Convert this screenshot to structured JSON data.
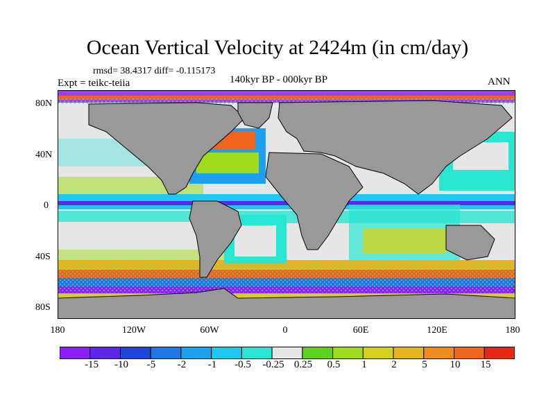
{
  "title": "Ocean Vertical Velocity at 2424m (in cm/day)",
  "stats": "rmsd= 38.4317 diff= -0.115173",
  "period": "140kyr BP - 000kyr BP",
  "experiment": "Expt = teikc-teiia",
  "season": "ANN",
  "lat_labels": [
    "80N",
    "40N",
    "0",
    "40S",
    "80S"
  ],
  "lon_labels": [
    "180",
    "120W",
    "60W",
    "0",
    "60E",
    "120E",
    "180"
  ],
  "colorbar": {
    "labels": [
      "-15",
      "-10",
      "-5",
      "-2",
      "-1",
      "-0.5",
      "-0.25",
      "0.25",
      "0.5",
      "1",
      "2",
      "5",
      "10",
      "15"
    ],
    "colors": [
      "#8c1eff",
      "#5a28e6",
      "#1e46dc",
      "#1e78e6",
      "#1ea0f0",
      "#1ec8f0",
      "#28e6d2",
      "#e6e6e6",
      "#5ad21e",
      "#a0dc1e",
      "#d2d21e",
      "#e6b41e",
      "#f08c1e",
      "#f0641e",
      "#e62814"
    ]
  },
  "colors": {
    "land": "#999999",
    "background": "#ffffff"
  }
}
